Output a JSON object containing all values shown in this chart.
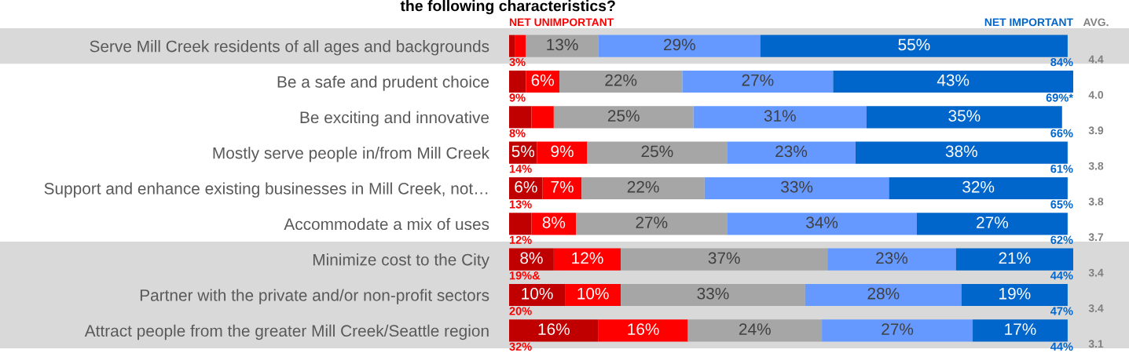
{
  "chart_data": {
    "type": "bar",
    "orientation": "horizontal",
    "stacked": true,
    "title": "the following characteristics?",
    "categories": [
      "Serve Mill Creek residents of all ages and backgrounds",
      "Be a safe and prudent choice",
      "Be exciting and innovative",
      "Mostly serve people in/from Mill Creek",
      "Support and enhance existing businesses in Mill Creek, not…",
      "Accommodate a mix of uses",
      "Minimize cost to the City",
      "Partner with the private and/or non-profit sectors",
      "Attract people from the greater Mill Creek/Seattle region"
    ],
    "series": [
      {
        "color": "#c00000",
        "values": [
          1,
          3,
          4,
          5,
          6,
          4,
          8,
          10,
          16
        ],
        "value_labels": [
          null,
          null,
          null,
          "5%",
          "6%",
          null,
          "8%",
          "10%",
          "16%"
        ]
      },
      {
        "color": "#ff0000",
        "values": [
          2,
          6,
          4,
          9,
          7,
          8,
          12,
          10,
          16
        ],
        "value_labels": [
          null,
          "6%",
          null,
          "9%",
          "7%",
          "8%",
          "12%",
          "10%",
          "16%"
        ]
      },
      {
        "color": "#a6a6a6",
        "values": [
          13,
          22,
          25,
          25,
          22,
          27,
          37,
          33,
          24
        ],
        "value_labels": [
          "13%",
          "22%",
          "25%",
          "25%",
          "22%",
          "27%",
          "37%",
          "33%",
          "24%"
        ]
      },
      {
        "color": "#6699ff",
        "values": [
          29,
          27,
          31,
          23,
          33,
          34,
          23,
          28,
          27
        ],
        "value_labels": [
          "29%",
          "27%",
          "31%",
          "23%",
          "33%",
          "34%",
          "23%",
          "28%",
          "27%"
        ]
      },
      {
        "color": "#0066cc",
        "values": [
          55,
          43,
          35,
          38,
          32,
          27,
          21,
          19,
          17
        ],
        "value_labels": [
          "55%",
          "43%",
          "35%",
          "38%",
          "32%",
          "27%",
          "21%",
          "19%",
          "17%"
        ]
      }
    ],
    "xlim": [
      0,
      101
    ],
    "tick_labels": "y",
    "grid": false,
    "legend": false,
    "bands": [
      {
        "axis": "y",
        "from": "Serve Mill Creek residents of all ages and backgrounds",
        "to": "Serve Mill Creek residents of all ages and backgrounds",
        "color": "#d9d9d9"
      },
      {
        "axis": "y",
        "from": "Minimize cost to the City",
        "to": "Attract people from the greater Mill Creek/Seattle region",
        "color": "#d9d9d9"
      }
    ],
    "annotations": [
      "NET UNIMPORTANT",
      "NET IMPORTANT",
      "AVG.",
      "4.4",
      "4.0",
      "3.9",
      "3.8",
      "3.8",
      "3.7",
      "3.4",
      "3.4",
      "3.1",
      "3%",
      "84%",
      "9%",
      "69%*",
      "8%",
      "66%",
      "14%",
      "61%",
      "13%",
      "65%",
      "12%",
      "62%",
      "19%&",
      "44%",
      "20%",
      "47%",
      "32%",
      "44%"
    ]
  }
}
